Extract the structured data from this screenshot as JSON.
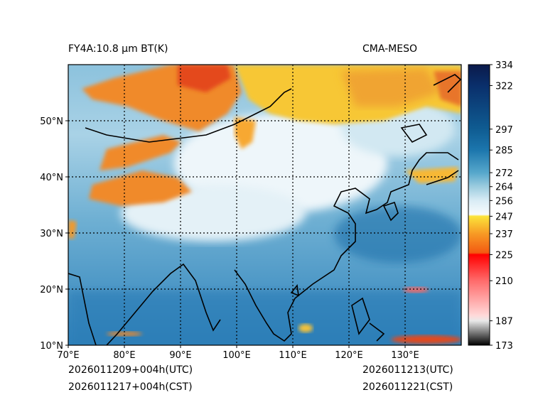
{
  "title_left": "FY4A:10.8 µm BT(K)",
  "title_right": "CMA-MESO",
  "footer": {
    "left_utc": "2026011209+004h(UTC)",
    "left_cst": "2026011217+004h(CST)",
    "right_utc": "2026011213(UTC)",
    "right_cst": "2026011221(CST)"
  },
  "map": {
    "lon_range": [
      70,
      140
    ],
    "lat_range": [
      10,
      60
    ],
    "lon_ticks": [
      "70°E",
      "80°E",
      "90°E",
      "100°E",
      "110°E",
      "120°E",
      "130°E"
    ],
    "lat_ticks": [
      "10°N",
      "20°N",
      "30°N",
      "40°N",
      "50°N"
    ],
    "colors": {
      "ocean": "#3f8fc4",
      "land_mid": "#b9d9ea",
      "cold_cloud_orange": "#f08a2c",
      "cold_cloud_yellow": "#f7c735",
      "coast": "#000000",
      "grid": "#000000"
    }
  },
  "colorbar": {
    "min": 173,
    "max": 334,
    "ticks": [
      "334",
      "322",
      "297",
      "285",
      "272",
      "264",
      "256",
      "247",
      "237",
      "225",
      "210",
      "187",
      "173"
    ],
    "stops": [
      {
        "value": 173,
        "color": "#000000"
      },
      {
        "value": 187,
        "color": "#e9e9e9"
      },
      {
        "value": 190,
        "color": "#ffd9d9"
      },
      {
        "value": 210,
        "color": "#ff6b6b"
      },
      {
        "value": 225,
        "color": "#ff0000"
      },
      {
        "value": 226,
        "color": "#f35a12"
      },
      {
        "value": 237,
        "color": "#f79a25"
      },
      {
        "value": 247,
        "color": "#fbe43a"
      },
      {
        "value": 248,
        "color": "#f7fbfd"
      },
      {
        "value": 256,
        "color": "#d9ecf5"
      },
      {
        "value": 264,
        "color": "#9cccdf"
      },
      {
        "value": 272,
        "color": "#56a7cb"
      },
      {
        "value": 285,
        "color": "#1c76ad"
      },
      {
        "value": 297,
        "color": "#0f5c92"
      },
      {
        "value": 322,
        "color": "#0a2f6b"
      },
      {
        "value": 334,
        "color": "#0b1a4a"
      }
    ]
  }
}
